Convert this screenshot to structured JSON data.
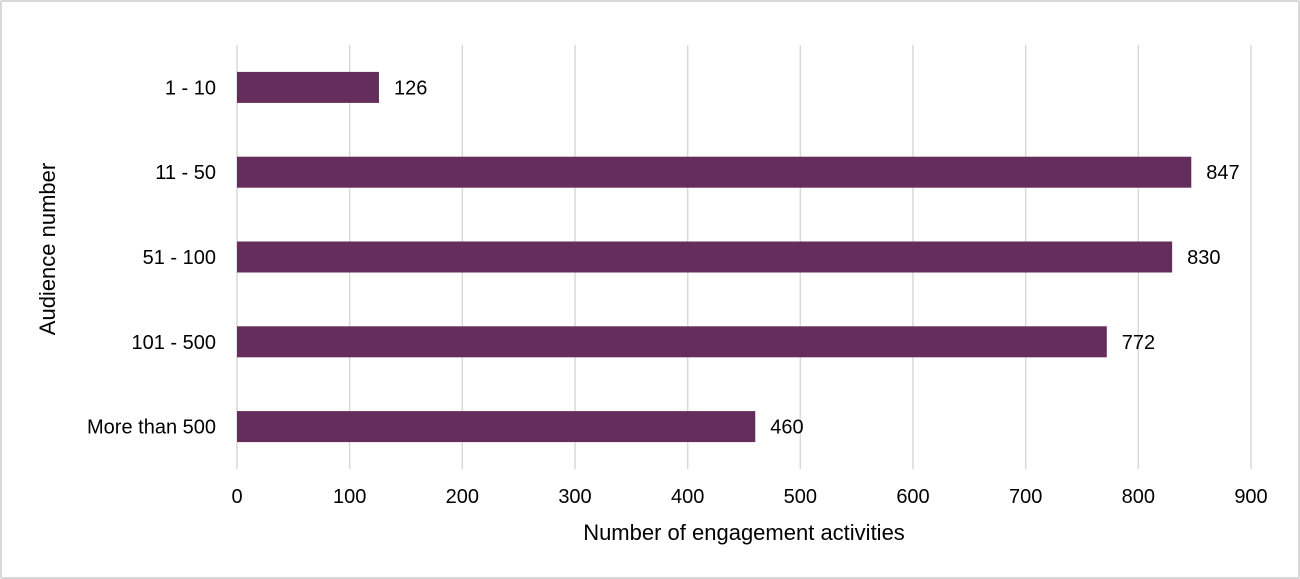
{
  "chart_data": {
    "type": "bar",
    "orientation": "horizontal",
    "categories": [
      "1 - 10",
      "11 - 50",
      "51 - 100",
      "101 - 500",
      "More than 500"
    ],
    "values": [
      126,
      847,
      830,
      772,
      460
    ],
    "data_labels": [
      "126",
      "847",
      "830",
      "772",
      "460"
    ],
    "xlabel": "Number of engagement activities",
    "ylabel": "Audience number",
    "xlim": [
      0,
      900
    ],
    "xticks": [
      "0",
      "100",
      "200",
      "300",
      "400",
      "500",
      "600",
      "700",
      "800",
      "900"
    ],
    "grid": true,
    "legend": "none",
    "bar_color": "#652d5b"
  }
}
